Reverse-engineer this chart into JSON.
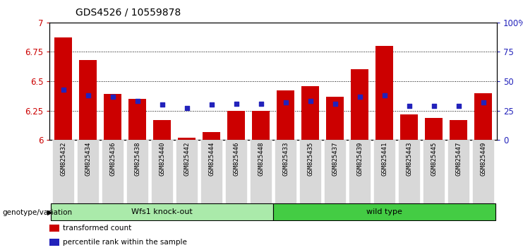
{
  "title": "GDS4526 / 10559878",
  "samples": [
    "GSM825432",
    "GSM825434",
    "GSM825436",
    "GSM825438",
    "GSM825440",
    "GSM825442",
    "GSM825444",
    "GSM825446",
    "GSM825448",
    "GSM825433",
    "GSM825435",
    "GSM825437",
    "GSM825439",
    "GSM825441",
    "GSM825443",
    "GSM825445",
    "GSM825447",
    "GSM825449"
  ],
  "red_values": [
    6.87,
    6.68,
    6.39,
    6.35,
    6.17,
    6.02,
    6.07,
    6.25,
    6.25,
    6.42,
    6.46,
    6.37,
    6.6,
    6.8,
    6.22,
    6.19,
    6.17,
    6.4
  ],
  "blue_values": [
    6.43,
    6.38,
    6.37,
    6.33,
    6.3,
    6.27,
    6.3,
    6.31,
    6.31,
    6.32,
    6.33,
    6.31,
    6.37,
    6.38,
    6.29,
    6.29,
    6.29,
    6.32
  ],
  "ymin": 6.0,
  "ymax": 7.0,
  "y_ticks_left": [
    6.0,
    6.25,
    6.5,
    6.75,
    7.0
  ],
  "y_ticks_left_labels": [
    "6",
    "6.25",
    "6.5",
    "6.75",
    "7"
  ],
  "y_ticks_right": [
    0,
    25,
    50,
    75,
    100
  ],
  "y_ticks_right_labels": [
    "0",
    "25",
    "50",
    "75",
    "100%"
  ],
  "bar_color": "#cc0000",
  "dot_color": "#2222bb",
  "groups": [
    {
      "label": "Wfs1 knock-out",
      "start": 0,
      "end": 9,
      "color": "#aaeaaa"
    },
    {
      "label": "wild type",
      "start": 9,
      "end": 18,
      "color": "#44cc44"
    }
  ],
  "xlabel_left": "genotype/variation",
  "legend_items": [
    {
      "color": "#cc0000",
      "label": "transformed count"
    },
    {
      "color": "#2222bb",
      "label": "percentile rank within the sample"
    }
  ],
  "bar_width": 0.7,
  "plot_bg": "#ffffff",
  "axis_label_color_left": "#cc0000",
  "axis_label_color_right": "#2222bb",
  "xtick_bg": "#d8d8d8"
}
